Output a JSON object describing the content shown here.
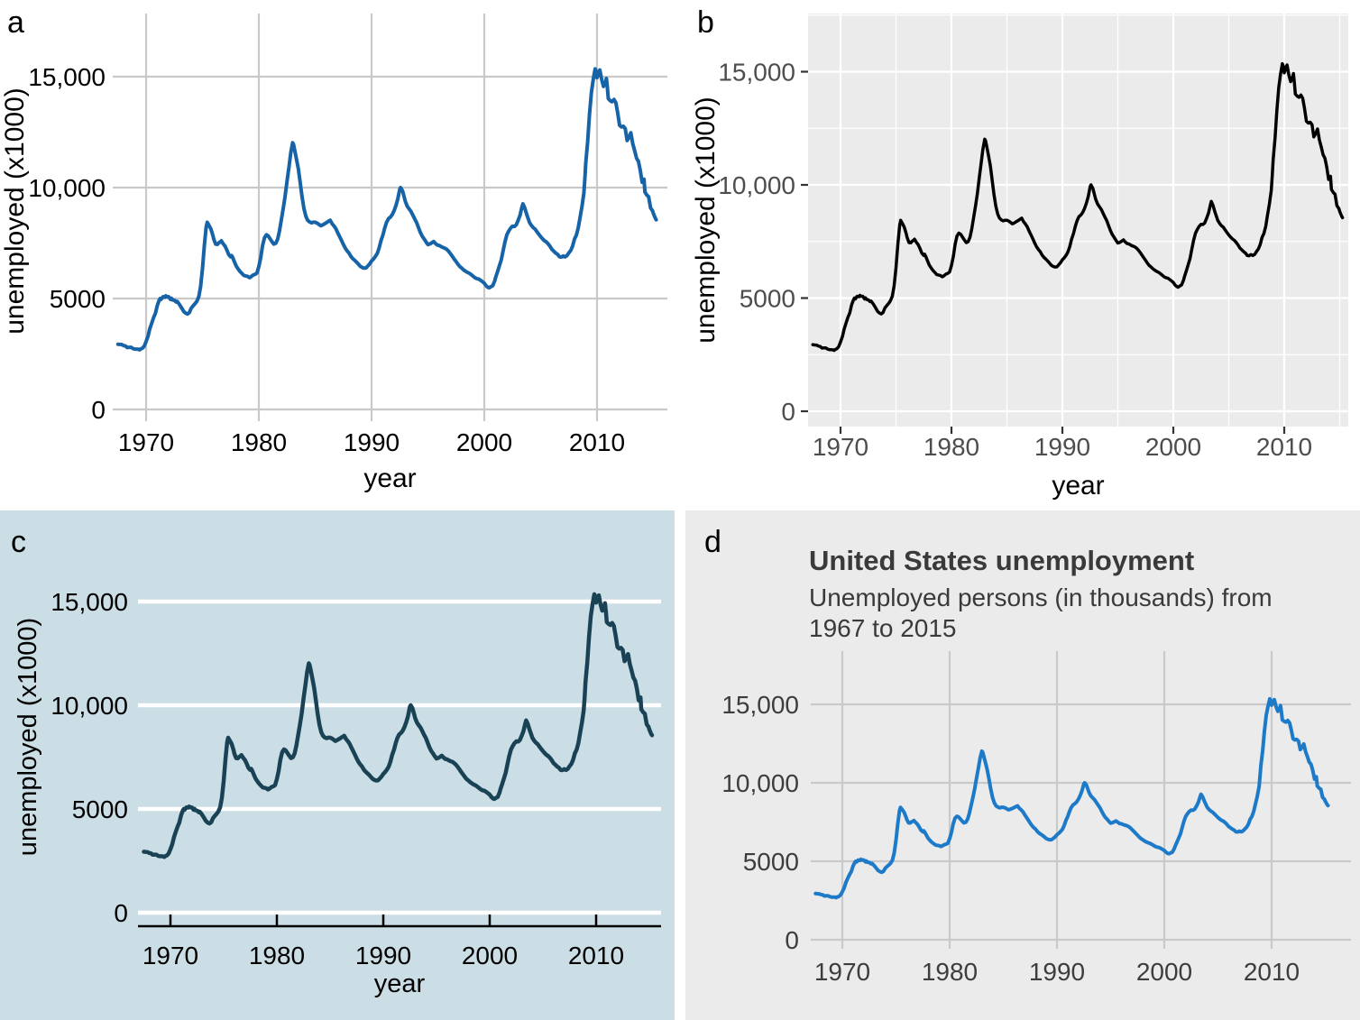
{
  "figure": {
    "description": "Four styled versions of the same US unemployment line chart"
  },
  "panels": [
    {
      "label": "a",
      "style": "white background with gray grid",
      "bg": "#ffffff",
      "grid_color": "#c9c9c9",
      "line_color": "#1663a8",
      "text_color": "#000000"
    },
    {
      "label": "b",
      "style": "ggplot gray panel with white grid",
      "bg": "#ffffff",
      "panel_bg": "#ebebeb",
      "grid_color": "#ffffff",
      "line_color": "#000000",
      "tick_color": "#333333",
      "text_color": "#4d4d4d",
      "axis_title_color": "#000000"
    },
    {
      "label": "c",
      "style": "light blue background with white horizontal grid",
      "bg": "#cbdee5",
      "grid_color": "#ffffff",
      "line_color": "#1a4255",
      "axis_color": "#000000",
      "text_color": "#000000"
    },
    {
      "label": "d",
      "style": "gray background with title and subtitle",
      "bg": "#ebebeb",
      "grid_color": "#c9c9c9",
      "line_color": "#1d7ac9",
      "text_color": "#3d3d3d",
      "title_color": "#3a3a3a",
      "title": "United States unemployment",
      "subtitle": "Unemployed persons (in thousands) from\n1967 to 2015"
    }
  ],
  "chart_data": {
    "type": "line",
    "title": "United States unemployment",
    "subtitle": "Unemployed persons (in thousands) from 1967 to 2015",
    "xlabel": "year",
    "ylabel": "unemployed (x1000)",
    "x_range": [
      1967,
      2016
    ],
    "y_range": [
      0,
      17500
    ],
    "grid": true,
    "legend": "none",
    "x_ticks": [
      1970,
      1980,
      1990,
      2000,
      2010
    ],
    "x_tick_labels": [
      "1970",
      "1980",
      "1990",
      "2000",
      "2010"
    ],
    "y_ticks": [
      0,
      5000,
      10000,
      15000
    ],
    "y_tick_labels": [
      "0",
      "5000",
      "10,000",
      "15,000"
    ],
    "points": [
      [
        1967.5,
        2940
      ],
      [
        1967.67,
        2930
      ],
      [
        1967.83,
        2925
      ],
      [
        1968,
        2880
      ],
      [
        1968.17,
        2860
      ],
      [
        1968.33,
        2790
      ],
      [
        1968.5,
        2800
      ],
      [
        1968.67,
        2800
      ],
      [
        1968.83,
        2745
      ],
      [
        1969,
        2720
      ],
      [
        1969.17,
        2720
      ],
      [
        1969.33,
        2710
      ],
      [
        1969.42,
        2685
      ],
      [
        1969.5,
        2720
      ],
      [
        1969.67,
        2760
      ],
      [
        1969.83,
        2850
      ],
      [
        1970,
        3060
      ],
      [
        1970.17,
        3300
      ],
      [
        1970.33,
        3640
      ],
      [
        1970.5,
        3900
      ],
      [
        1970.67,
        4150
      ],
      [
        1970.83,
        4340
      ],
      [
        1971,
        4700
      ],
      [
        1971.17,
        4930
      ],
      [
        1971.25,
        5000
      ],
      [
        1971.33,
        4960
      ],
      [
        1971.5,
        5080
      ],
      [
        1971.67,
        5060
      ],
      [
        1971.75,
        5120
      ],
      [
        1971.83,
        5080
      ],
      [
        1972,
        5080
      ],
      [
        1972.17,
        4960
      ],
      [
        1972.25,
        5010
      ],
      [
        1972.33,
        4940
      ],
      [
        1972.5,
        4920
      ],
      [
        1972.67,
        4840
      ],
      [
        1972.75,
        4870
      ],
      [
        1972.83,
        4820
      ],
      [
        1973,
        4700
      ],
      [
        1973.17,
        4560
      ],
      [
        1973.33,
        4420
      ],
      [
        1973.5,
        4340
      ],
      [
        1973.67,
        4300
      ],
      [
        1973.83,
        4360
      ],
      [
        1974,
        4560
      ],
      [
        1974.17,
        4670
      ],
      [
        1974.33,
        4760
      ],
      [
        1974.5,
        4880
      ],
      [
        1974.67,
        5080
      ],
      [
        1974.83,
        5530
      ],
      [
        1975,
        6340
      ],
      [
        1975.17,
        7400
      ],
      [
        1975.33,
        8220
      ],
      [
        1975.42,
        8433
      ],
      [
        1975.58,
        8300
      ],
      [
        1975.75,
        8130
      ],
      [
        1975.92,
        7850
      ],
      [
        1976,
        7680
      ],
      [
        1976.17,
        7450
      ],
      [
        1976.33,
        7440
      ],
      [
        1976.42,
        7500
      ],
      [
        1976.58,
        7550
      ],
      [
        1976.67,
        7600
      ],
      [
        1976.83,
        7470
      ],
      [
        1977,
        7360
      ],
      [
        1977.17,
        7180
      ],
      [
        1977.33,
        6980
      ],
      [
        1977.5,
        6880
      ],
      [
        1977.58,
        6940
      ],
      [
        1977.67,
        6860
      ],
      [
        1977.83,
        6660
      ],
      [
        1978,
        6460
      ],
      [
        1978.17,
        6330
      ],
      [
        1978.33,
        6220
      ],
      [
        1978.5,
        6130
      ],
      [
        1978.67,
        6040
      ],
      [
        1978.83,
        6020
      ],
      [
        1979,
        6000
      ],
      [
        1979.17,
        5940
      ],
      [
        1979.25,
        5960
      ],
      [
        1979.33,
        5990
      ],
      [
        1979.5,
        6060
      ],
      [
        1979.67,
        6090
      ],
      [
        1979.83,
        6150
      ],
      [
        1980,
        6440
      ],
      [
        1980.17,
        6840
      ],
      [
        1980.33,
        7380
      ],
      [
        1980.5,
        7740
      ],
      [
        1980.67,
        7870
      ],
      [
        1980.83,
        7820
      ],
      [
        1981,
        7690
      ],
      [
        1981.17,
        7560
      ],
      [
        1981.33,
        7450
      ],
      [
        1981.5,
        7490
      ],
      [
        1981.67,
        7680
      ],
      [
        1981.83,
        8050
      ],
      [
        1982,
        8560
      ],
      [
        1982.17,
        9070
      ],
      [
        1982.33,
        9600
      ],
      [
        1982.5,
        10300
      ],
      [
        1982.67,
        10920
      ],
      [
        1982.83,
        11560
      ],
      [
        1983,
        12020
      ],
      [
        1983.08,
        11940
      ],
      [
        1983.17,
        11720
      ],
      [
        1983.33,
        11310
      ],
      [
        1983.5,
        10850
      ],
      [
        1983.67,
        10220
      ],
      [
        1983.83,
        9590
      ],
      [
        1984,
        9060
      ],
      [
        1984.17,
        8710
      ],
      [
        1984.33,
        8530
      ],
      [
        1984.5,
        8450
      ],
      [
        1984.67,
        8410
      ],
      [
        1984.83,
        8440
      ],
      [
        1985,
        8440
      ],
      [
        1985.17,
        8400
      ],
      [
        1985.33,
        8340
      ],
      [
        1985.5,
        8280
      ],
      [
        1985.67,
        8320
      ],
      [
        1985.83,
        8370
      ],
      [
        1986,
        8420
      ],
      [
        1986.17,
        8480
      ],
      [
        1986.33,
        8530
      ],
      [
        1986.5,
        8370
      ],
      [
        1986.67,
        8270
      ],
      [
        1986.83,
        8150
      ],
      [
        1987,
        7960
      ],
      [
        1987.17,
        7790
      ],
      [
        1987.33,
        7620
      ],
      [
        1987.5,
        7430
      ],
      [
        1987.67,
        7270
      ],
      [
        1987.83,
        7150
      ],
      [
        1988,
        7050
      ],
      [
        1988.17,
        6900
      ],
      [
        1988.33,
        6800
      ],
      [
        1988.5,
        6720
      ],
      [
        1988.67,
        6640
      ],
      [
        1988.83,
        6550
      ],
      [
        1989,
        6450
      ],
      [
        1989.17,
        6400
      ],
      [
        1989.33,
        6370
      ],
      [
        1989.5,
        6380
      ],
      [
        1989.67,
        6470
      ],
      [
        1989.83,
        6560
      ],
      [
        1990,
        6690
      ],
      [
        1990.17,
        6780
      ],
      [
        1990.33,
        6890
      ],
      [
        1990.5,
        7030
      ],
      [
        1990.67,
        7280
      ],
      [
        1990.83,
        7600
      ],
      [
        1991,
        7850
      ],
      [
        1991.17,
        8180
      ],
      [
        1991.33,
        8430
      ],
      [
        1991.5,
        8600
      ],
      [
        1991.67,
        8670
      ],
      [
        1991.83,
        8780
      ],
      [
        1992,
        8960
      ],
      [
        1992.17,
        9200
      ],
      [
        1992.33,
        9490
      ],
      [
        1992.5,
        9930
      ],
      [
        1992.58,
        10000
      ],
      [
        1992.75,
        9850
      ],
      [
        1992.92,
        9520
      ],
      [
        1993,
        9370
      ],
      [
        1993.17,
        9160
      ],
      [
        1993.33,
        9040
      ],
      [
        1993.5,
        8920
      ],
      [
        1993.67,
        8750
      ],
      [
        1993.83,
        8580
      ],
      [
        1994,
        8420
      ],
      [
        1994.17,
        8190
      ],
      [
        1994.33,
        7980
      ],
      [
        1994.5,
        7800
      ],
      [
        1994.67,
        7680
      ],
      [
        1994.83,
        7550
      ],
      [
        1995,
        7430
      ],
      [
        1995.17,
        7460
      ],
      [
        1995.33,
        7510
      ],
      [
        1995.5,
        7570
      ],
      [
        1995.67,
        7480
      ],
      [
        1995.83,
        7410
      ],
      [
        1996,
        7390
      ],
      [
        1996.17,
        7340
      ],
      [
        1996.33,
        7300
      ],
      [
        1996.5,
        7270
      ],
      [
        1996.67,
        7210
      ],
      [
        1996.83,
        7130
      ],
      [
        1997,
        7020
      ],
      [
        1997.17,
        6900
      ],
      [
        1997.33,
        6780
      ],
      [
        1997.5,
        6660
      ],
      [
        1997.67,
        6540
      ],
      [
        1997.83,
        6440
      ],
      [
        1998,
        6370
      ],
      [
        1998.17,
        6290
      ],
      [
        1998.33,
        6230
      ],
      [
        1998.5,
        6180
      ],
      [
        1998.67,
        6140
      ],
      [
        1998.83,
        6080
      ],
      [
        1999,
        6010
      ],
      [
        1999.17,
        5940
      ],
      [
        1999.33,
        5900
      ],
      [
        1999.5,
        5880
      ],
      [
        1999.67,
        5820
      ],
      [
        1999.83,
        5760
      ],
      [
        2000,
        5690
      ],
      [
        2000.17,
        5570
      ],
      [
        2000.33,
        5500
      ],
      [
        2000.42,
        5480
      ],
      [
        2000.58,
        5530
      ],
      [
        2000.75,
        5580
      ],
      [
        2000.92,
        5790
      ],
      [
        2001,
        5940
      ],
      [
        2001.17,
        6200
      ],
      [
        2001.33,
        6460
      ],
      [
        2001.5,
        6740
      ],
      [
        2001.67,
        7160
      ],
      [
        2001.83,
        7550
      ],
      [
        2002,
        7870
      ],
      [
        2002.17,
        8040
      ],
      [
        2002.33,
        8170
      ],
      [
        2002.5,
        8260
      ],
      [
        2002.67,
        8250
      ],
      [
        2002.83,
        8320
      ],
      [
        2003,
        8520
      ],
      [
        2003.17,
        8750
      ],
      [
        2003.33,
        9100
      ],
      [
        2003.42,
        9270
      ],
      [
        2003.58,
        9100
      ],
      [
        2003.75,
        8810
      ],
      [
        2003.92,
        8560
      ],
      [
        2004,
        8440
      ],
      [
        2004.17,
        8300
      ],
      [
        2004.33,
        8200
      ],
      [
        2004.5,
        8130
      ],
      [
        2004.67,
        8010
      ],
      [
        2004.83,
        7900
      ],
      [
        2005,
        7790
      ],
      [
        2005.17,
        7690
      ],
      [
        2005.33,
        7610
      ],
      [
        2005.5,
        7550
      ],
      [
        2005.67,
        7460
      ],
      [
        2005.83,
        7350
      ],
      [
        2006,
        7210
      ],
      [
        2006.17,
        7130
      ],
      [
        2006.33,
        7050
      ],
      [
        2006.5,
        6990
      ],
      [
        2006.67,
        6880
      ],
      [
        2006.83,
        6870
      ],
      [
        2007,
        6920
      ],
      [
        2007.17,
        6880
      ],
      [
        2007.33,
        6930
      ],
      [
        2007.5,
        7060
      ],
      [
        2007.67,
        7170
      ],
      [
        2007.83,
        7360
      ],
      [
        2008,
        7680
      ],
      [
        2008.17,
        7860
      ],
      [
        2008.33,
        8170
      ],
      [
        2008.5,
        8680
      ],
      [
        2008.67,
        9170
      ],
      [
        2008.83,
        9750
      ],
      [
        2008.92,
        10400
      ],
      [
        2009,
        11110
      ],
      [
        2009.17,
        12060
      ],
      [
        2009.33,
        13280
      ],
      [
        2009.5,
        14300
      ],
      [
        2009.67,
        14900
      ],
      [
        2009.83,
        15350
      ],
      [
        2009.92,
        15240
      ],
      [
        2010,
        14950
      ],
      [
        2010.17,
        15200
      ],
      [
        2010.25,
        15300
      ],
      [
        2010.42,
        14840
      ],
      [
        2010.58,
        14560
      ],
      [
        2010.75,
        14750
      ],
      [
        2010.83,
        14920
      ],
      [
        2010.92,
        14490
      ],
      [
        2011,
        14010
      ],
      [
        2011.17,
        13920
      ],
      [
        2011.33,
        13870
      ],
      [
        2011.5,
        13970
      ],
      [
        2011.67,
        13820
      ],
      [
        2011.83,
        13370
      ],
      [
        2012,
        12810
      ],
      [
        2012.17,
        12730
      ],
      [
        2012.33,
        12770
      ],
      [
        2012.5,
        12660
      ],
      [
        2012.67,
        12120
      ],
      [
        2012.83,
        12260
      ],
      [
        2013,
        12470
      ],
      [
        2013.17,
        11980
      ],
      [
        2013.33,
        11680
      ],
      [
        2013.5,
        11330
      ],
      [
        2013.67,
        11180
      ],
      [
        2013.83,
        10790
      ],
      [
        2014,
        10240
      ],
      [
        2014.17,
        10380
      ],
      [
        2014.25,
        9800
      ],
      [
        2014.42,
        9660
      ],
      [
        2014.58,
        9590
      ],
      [
        2014.75,
        9080
      ],
      [
        2014.92,
        8960
      ],
      [
        2015,
        8830
      ],
      [
        2015.17,
        8620
      ],
      [
        2015.25,
        8550
      ]
    ]
  }
}
